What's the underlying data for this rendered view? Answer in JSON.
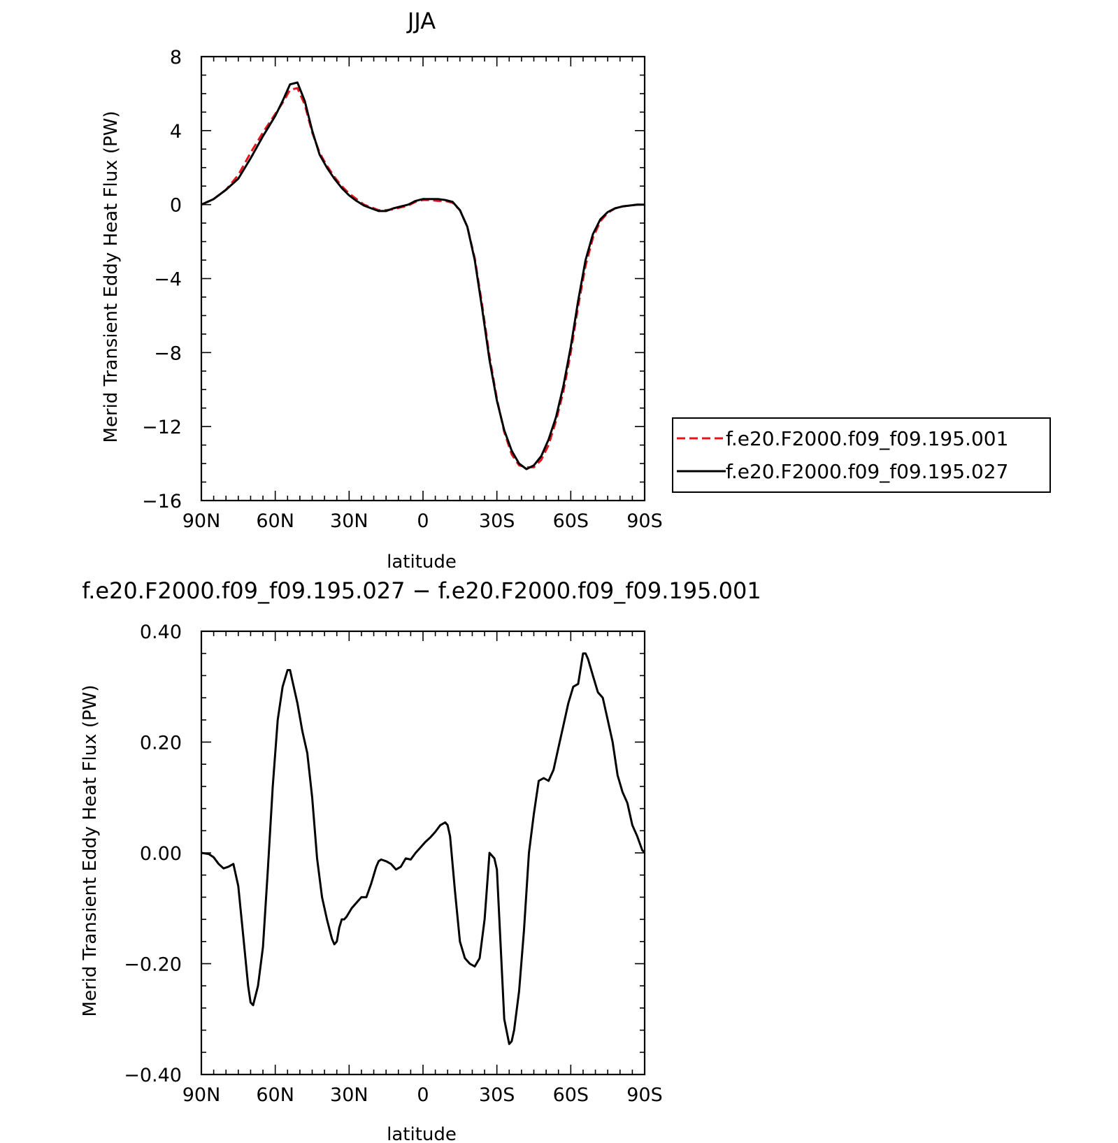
{
  "chart_data": [
    {
      "type": "line",
      "title": "JJA",
      "xlabel": "latitude",
      "ylabel": "Merid Transient Eddy Heat Flux (PW)",
      "xlim": [
        -90,
        90
      ],
      "ylim": [
        -16,
        8
      ],
      "x_unit_note": "x = latitude in degrees, positive = north",
      "xticks": [
        {
          "value": -90,
          "label": "90N"
        },
        {
          "value": -60,
          "label": "60N"
        },
        {
          "value": -30,
          "label": "30N"
        },
        {
          "value": 0,
          "label": "0"
        },
        {
          "value": 30,
          "label": "30S"
        },
        {
          "value": 60,
          "label": "60S"
        },
        {
          "value": 90,
          "label": "90S"
        }
      ],
      "yticks": [
        {
          "value": 8,
          "label": "8"
        },
        {
          "value": 4,
          "label": "4"
        },
        {
          "value": 0,
          "label": "0"
        },
        {
          "value": -4,
          "label": "−4"
        },
        {
          "value": -8,
          "label": "−8"
        },
        {
          "value": -12,
          "label": "−12"
        },
        {
          "value": -16,
          "label": "−16"
        }
      ],
      "legend": "right",
      "series": [
        {
          "name": "f.e20.F2000.f09_f09.195.001",
          "color": "#e8141c",
          "dash": "dashed",
          "x": [
            -90,
            -85,
            -80,
            -75,
            -70,
            -65,
            -60,
            -57,
            -54,
            -51,
            -48,
            -45,
            -42,
            -39,
            -36,
            -33,
            -30,
            -27,
            -24,
            -21,
            -18,
            -15,
            -12,
            -9,
            -6,
            -3,
            0,
            3,
            6,
            9,
            12,
            15,
            18,
            21,
            24,
            27,
            30,
            33,
            36,
            39,
            42,
            45,
            48,
            51,
            54,
            57,
            60,
            63,
            66,
            69,
            72,
            75,
            78,
            81,
            84,
            87,
            90
          ],
          "y": [
            0,
            0.3,
            0.8,
            1.6,
            2.8,
            3.9,
            4.9,
            5.5,
            6.2,
            6.3,
            5.4,
            3.9,
            2.8,
            2.1,
            1.5,
            1.0,
            0.6,
            0.3,
            0,
            -0.15,
            -0.3,
            -0.3,
            -0.25,
            -0.15,
            -0.05,
            0.15,
            0.25,
            0.25,
            0.2,
            0.2,
            0.1,
            -0.3,
            -1.2,
            -2.9,
            -5.4,
            -8.2,
            -10.5,
            -12.3,
            -13.5,
            -14.1,
            -14.2,
            -14.2,
            -13.8,
            -13.0,
            -11.7,
            -10.1,
            -8.0,
            -5.5,
            -3.3,
            -1.8,
            -0.9,
            -0.45,
            -0.2,
            -0.1,
            -0.05,
            0,
            0
          ]
        },
        {
          "name": "f.e20.F2000.f09_f09.195.027",
          "color": "#000000",
          "dash": "solid",
          "x": [
            -90,
            -85,
            -80,
            -75,
            -70,
            -65,
            -60,
            -57,
            -54,
            -51,
            -48,
            -45,
            -42,
            -39,
            -36,
            -33,
            -30,
            -27,
            -24,
            -21,
            -18,
            -15,
            -12,
            -9,
            -6,
            -3,
            0,
            3,
            6,
            9,
            12,
            15,
            18,
            21,
            24,
            27,
            30,
            33,
            36,
            39,
            42,
            45,
            48,
            51,
            54,
            57,
            60,
            63,
            66,
            69,
            72,
            75,
            78,
            81,
            84,
            87,
            90
          ],
          "y": [
            0,
            0.3,
            0.8,
            1.4,
            2.5,
            3.7,
            4.8,
            5.6,
            6.5,
            6.6,
            5.6,
            4.0,
            2.7,
            2.0,
            1.4,
            0.9,
            0.5,
            0.2,
            -0.05,
            -0.2,
            -0.35,
            -0.35,
            -0.2,
            -0.1,
            0,
            0.2,
            0.3,
            0.3,
            0.3,
            0.25,
            0.15,
            -0.3,
            -1.2,
            -3.0,
            -5.6,
            -8.4,
            -10.6,
            -12.2,
            -13.3,
            -14.0,
            -14.3,
            -14.1,
            -13.6,
            -12.7,
            -11.5,
            -9.8,
            -7.7,
            -5.2,
            -3.0,
            -1.6,
            -0.8,
            -0.4,
            -0.2,
            -0.1,
            -0.05,
            0,
            0
          ]
        }
      ]
    },
    {
      "type": "line",
      "title": "f.e20.F2000.f09_f09.195.027 − f.e20.F2000.f09_f09.195.001",
      "xlabel": "latitude",
      "ylabel": "Merid Transient Eddy Heat Flux (PW)",
      "xlim": [
        -90,
        90
      ],
      "ylim": [
        -0.4,
        0.4
      ],
      "x_unit_note": "x = latitude in degrees, positive = north",
      "xticks": [
        {
          "value": -90,
          "label": "90N"
        },
        {
          "value": -60,
          "label": "60N"
        },
        {
          "value": -30,
          "label": "30N"
        },
        {
          "value": 0,
          "label": "0"
        },
        {
          "value": 30,
          "label": "30S"
        },
        {
          "value": 60,
          "label": "60S"
        },
        {
          "value": 90,
          "label": "90S"
        }
      ],
      "yticks": [
        {
          "value": 0.4,
          "label": "0.40"
        },
        {
          "value": 0.2,
          "label": "0.20"
        },
        {
          "value": 0,
          "label": "0.00"
        },
        {
          "value": -0.2,
          "label": "−0.20"
        },
        {
          "value": -0.4,
          "label": "−0.40"
        }
      ],
      "series": [
        {
          "color": "#000000",
          "dash": "solid",
          "x": [
            -90,
            -87,
            -85,
            -83,
            -81,
            -79,
            -77,
            -75,
            -73,
            -71,
            -70,
            -69,
            -67,
            -65,
            -63,
            -61,
            -59,
            -57,
            -55,
            -54,
            -53,
            -51,
            -49,
            -47,
            -45,
            -43,
            -41,
            -39,
            -37,
            -36,
            -35,
            -34,
            -33,
            -32,
            -31,
            -29,
            -27,
            -25,
            -23,
            -21,
            -19,
            -18,
            -17,
            -15,
            -13,
            -11,
            -9,
            -7,
            -5,
            -3,
            -1,
            1,
            3,
            5,
            7,
            9,
            10,
            11,
            13,
            15,
            17,
            19,
            21,
            23,
            25,
            27,
            29,
            30,
            31,
            33,
            35,
            36,
            37,
            39,
            41,
            43,
            45,
            47,
            49,
            51,
            53,
            55,
            57,
            59,
            61,
            63,
            65,
            66,
            67,
            69,
            71,
            73,
            75,
            77,
            79,
            81,
            83,
            85,
            87,
            89,
            90
          ],
          "y": [
            0,
            -0.002,
            -0.008,
            -0.02,
            -0.028,
            -0.025,
            -0.02,
            -0.06,
            -0.15,
            -0.24,
            -0.27,
            -0.275,
            -0.24,
            -0.17,
            -0.03,
            0.12,
            0.24,
            0.3,
            0.33,
            0.33,
            0.31,
            0.27,
            0.22,
            0.18,
            0.1,
            -0.01,
            -0.08,
            -0.12,
            -0.155,
            -0.165,
            -0.16,
            -0.135,
            -0.12,
            -0.12,
            -0.115,
            -0.1,
            -0.09,
            -0.08,
            -0.08,
            -0.055,
            -0.025,
            -0.015,
            -0.012,
            -0.015,
            -0.02,
            -0.03,
            -0.025,
            -0.01,
            -0.012,
            0,
            0.01,
            0.02,
            0.028,
            0.038,
            0.05,
            0.055,
            0.05,
            0.03,
            -0.07,
            -0.16,
            -0.19,
            -0.2,
            -0.205,
            -0.19,
            -0.12,
            0.0,
            -0.01,
            -0.03,
            -0.12,
            -0.3,
            -0.345,
            -0.34,
            -0.32,
            -0.25,
            -0.14,
            0.0,
            0.07,
            0.13,
            0.135,
            0.13,
            0.15,
            0.19,
            0.23,
            0.27,
            0.3,
            0.305,
            0.36,
            0.36,
            0.35,
            0.32,
            0.29,
            0.28,
            0.24,
            0.2,
            0.14,
            0.11,
            0.09,
            0.05,
            0.03,
            0.005,
            0
          ]
        }
      ]
    }
  ]
}
